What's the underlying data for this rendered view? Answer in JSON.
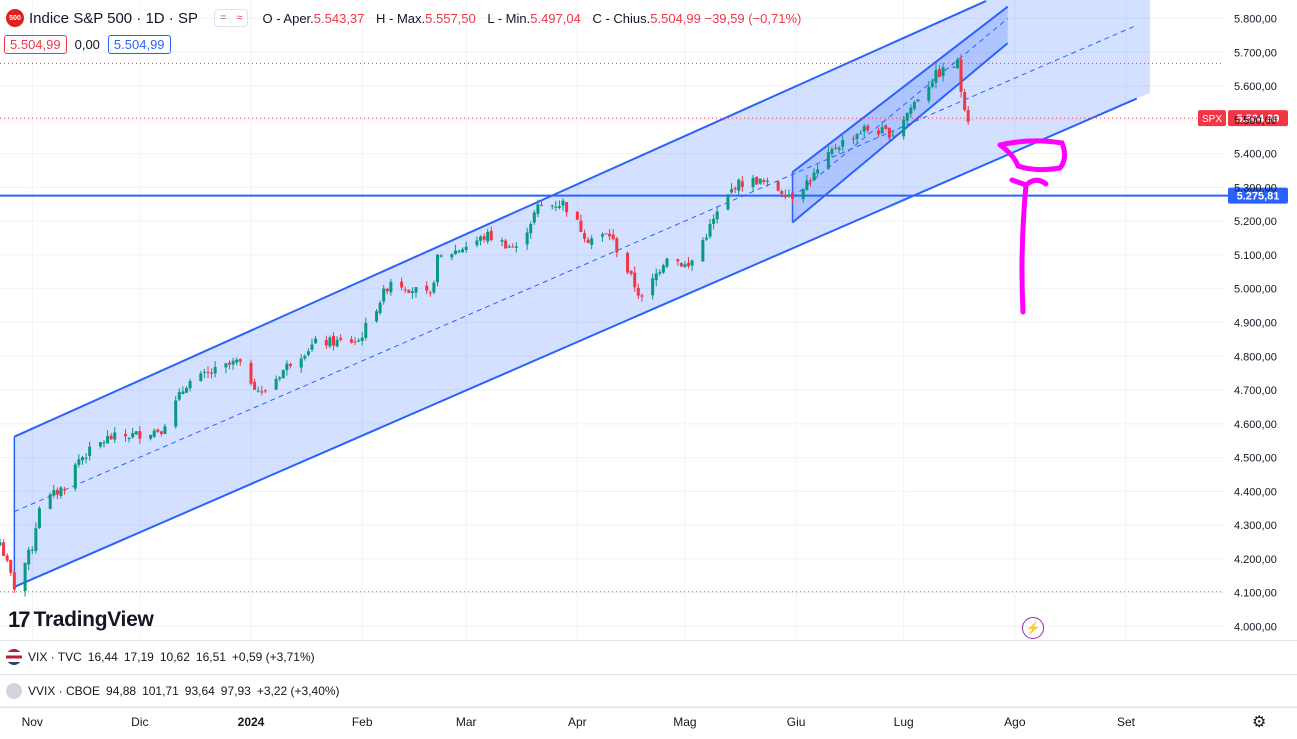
{
  "header": {
    "badge": "500",
    "symbol_title": "Indice S&P 500 · 1D · SP",
    "pill_left": "=",
    "pill_right": "≈",
    "ohlc": [
      {
        "label": "O - Aper.",
        "value": "5.543,37"
      },
      {
        "label": "H - Max.",
        "value": "5.557,50"
      },
      {
        "label": "L - Min.",
        "value": "5.497,04"
      },
      {
        "label": "C - Chius.",
        "value": "5.504,99 −39,59 (−0,71%)"
      }
    ],
    "bid": "5.504,99",
    "spread": "0,00",
    "ask": "5.504,99"
  },
  "logo": {
    "mark": "17",
    "name": "TradingView"
  },
  "indicators": [
    {
      "name": "VIX · TVC",
      "values": [
        "16,44",
        "17,19",
        "10,62",
        "16,51"
      ],
      "change": "+0,59 (+3,71%)"
    },
    {
      "name": "VVIX · CBOE",
      "values": [
        "94,88",
        "101,71",
        "93,64",
        "97,93"
      ],
      "change": "+3,22 (+3,40%)"
    }
  ],
  "colors": {
    "up": "#089981",
    "down": "#f23645",
    "channel": "#2962ff",
    "annotation": "#ff00ff"
  },
  "icons": [
    "lightning-icon",
    "gear-icon",
    "us-flag-icon"
  ],
  "chart_data": {
    "type": "candlestick",
    "symbol": "SPX",
    "interval": "1D",
    "ylim": [
      3960,
      5840
    ],
    "y_ticks": [
      "5.800,00",
      "5.700,00",
      "5.600,00",
      "5.500,00",
      "5.400,00",
      "5.300,00",
      "5.200,00",
      "5.100,00",
      "5.000,00",
      "4.900,00",
      "4.800,00",
      "4.700,00",
      "4.600,00",
      "4.500,00",
      "4.400,00",
      "4.300,00",
      "4.200,00",
      "4.100,00",
      "4.000,00"
    ],
    "x_ticks": [
      {
        "label": "Nov",
        "date": "2023-11-01"
      },
      {
        "label": "Dic",
        "date": "2023-12-01"
      },
      {
        "label": "2024",
        "date": "2024-01-01"
      },
      {
        "label": "Feb",
        "date": "2024-02-01"
      },
      {
        "label": "Mar",
        "date": "2024-03-01"
      },
      {
        "label": "Apr",
        "date": "2024-04-01"
      },
      {
        "label": "Mag",
        "date": "2024-05-01"
      },
      {
        "label": "Giu",
        "date": "2024-06-01"
      },
      {
        "label": "Lug",
        "date": "2024-07-01"
      },
      {
        "label": "Ago",
        "date": "2024-08-01"
      },
      {
        "label": "Set",
        "date": "2024-09-01"
      }
    ],
    "x_range": [
      "2023-10-23",
      "2024-09-30"
    ],
    "close_path": [
      [
        "2023-10-23",
        4250
      ],
      [
        "2023-10-27",
        4117
      ],
      [
        "2023-11-01",
        4237
      ],
      [
        "2023-11-03",
        4358
      ],
      [
        "2023-11-10",
        4415
      ],
      [
        "2023-11-14",
        4495
      ],
      [
        "2023-11-22",
        4557
      ],
      [
        "2023-11-30",
        4568
      ],
      [
        "2023-12-07",
        4585
      ],
      [
        "2023-12-14",
        4719
      ],
      [
        "2023-12-28",
        4783
      ],
      [
        "2024-01-04",
        4688
      ],
      [
        "2024-01-12",
        4783
      ],
      [
        "2024-01-19",
        4839
      ],
      [
        "2024-01-31",
        4846
      ],
      [
        "2024-02-09",
        5026
      ],
      [
        "2024-02-20",
        4975
      ],
      [
        "2024-02-22",
        5087
      ],
      [
        "2024-03-07",
        5157
      ],
      [
        "2024-03-15",
        5117
      ],
      [
        "2024-03-21",
        5241
      ],
      [
        "2024-03-28",
        5254
      ],
      [
        "2024-04-04",
        5147
      ],
      [
        "2024-04-10",
        5160
      ],
      [
        "2024-04-19",
        4967
      ],
      [
        "2024-04-26",
        5099
      ],
      [
        "2024-05-02",
        5064
      ],
      [
        "2024-05-10",
        5222
      ],
      [
        "2024-05-15",
        5308
      ],
      [
        "2024-05-21",
        5321
      ],
      [
        "2024-05-31",
        5277
      ],
      [
        "2024-06-07",
        5346
      ],
      [
        "2024-06-12",
        5421
      ],
      [
        "2024-06-20",
        5473
      ],
      [
        "2024-06-28",
        5460
      ],
      [
        "2024-07-05",
        5567
      ],
      [
        "2024-07-10",
        5633
      ],
      [
        "2024-07-16",
        5667
      ],
      [
        "2024-07-17",
        5588
      ],
      [
        "2024-07-18",
        5544
      ],
      [
        "2024-07-19",
        5505
      ]
    ],
    "last_price": {
      "label": "SPX",
      "value": "5.504,99",
      "y": 5504.99
    },
    "horizontal_line": {
      "label": "5.275,81",
      "y": 5275.81
    },
    "dotted_levels": [
      5667,
      5504.99,
      4103
    ],
    "channels": [
      {
        "name": "big",
        "upper": [
          [
            "2023-10-27",
            4562
          ],
          [
            "2024-07-24",
            5852
          ]
        ],
        "lower": [
          [
            "2023-10-27",
            4117
          ],
          [
            "2024-09-04",
            5563
          ]
        ],
        "mid": [
          [
            "2023-10-27",
            4340
          ],
          [
            "2024-09-04",
            5780
          ]
        ]
      },
      {
        "name": "small",
        "upper": [
          [
            "2024-05-31",
            5345
          ],
          [
            "2024-07-30",
            5835
          ]
        ],
        "lower": [
          [
            "2024-05-31",
            5196
          ],
          [
            "2024-07-30",
            5727
          ]
        ],
        "mid": [
          [
            "2024-05-31",
            5270
          ],
          [
            "2024-07-30",
            5800
          ]
        ]
      }
    ]
  }
}
